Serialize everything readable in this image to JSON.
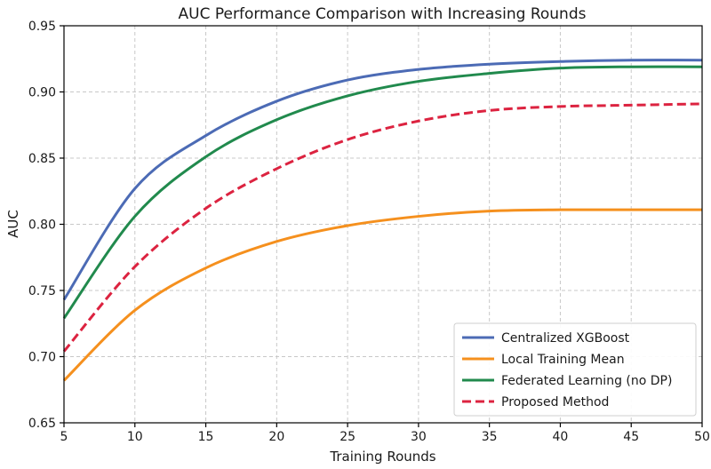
{
  "chart_data": {
    "type": "line",
    "title": "AUC Performance Comparison with Increasing Rounds",
    "xlabel": "Training Rounds",
    "ylabel": "AUC",
    "xlim": [
      5,
      50
    ],
    "ylim": [
      0.65,
      0.95
    ],
    "xticks": [
      "5",
      "10",
      "15",
      "20",
      "25",
      "30",
      "35",
      "40",
      "45",
      "50"
    ],
    "yticks": [
      "0.65",
      "0.70",
      "0.75",
      "0.80",
      "0.85",
      "0.90",
      "0.95"
    ],
    "grid": true,
    "legend_position": "lower-right",
    "x": [
      5,
      10,
      15,
      20,
      25,
      30,
      35,
      40,
      45,
      50
    ],
    "series": [
      {
        "name": "Centralized XGBoost",
        "color": "#4c6bb5",
        "style": "solid",
        "values": [
          0.743,
          0.827,
          0.867,
          0.893,
          0.909,
          0.917,
          0.921,
          0.923,
          0.924,
          0.924
        ]
      },
      {
        "name": "Local Training Mean",
        "color": "#f5901e",
        "style": "solid",
        "values": [
          0.682,
          0.735,
          0.767,
          0.787,
          0.799,
          0.806,
          0.81,
          0.811,
          0.811,
          0.811
        ]
      },
      {
        "name": "Federated Learning (no DP)",
        "color": "#218a4d",
        "style": "solid",
        "values": [
          0.729,
          0.806,
          0.851,
          0.879,
          0.897,
          0.908,
          0.914,
          0.918,
          0.919,
          0.919
        ]
      },
      {
        "name": "Proposed Method",
        "color": "#dc2340",
        "style": "dashed",
        "values": [
          0.704,
          0.768,
          0.812,
          0.842,
          0.864,
          0.878,
          0.886,
          0.889,
          0.89,
          0.891
        ]
      }
    ]
  }
}
